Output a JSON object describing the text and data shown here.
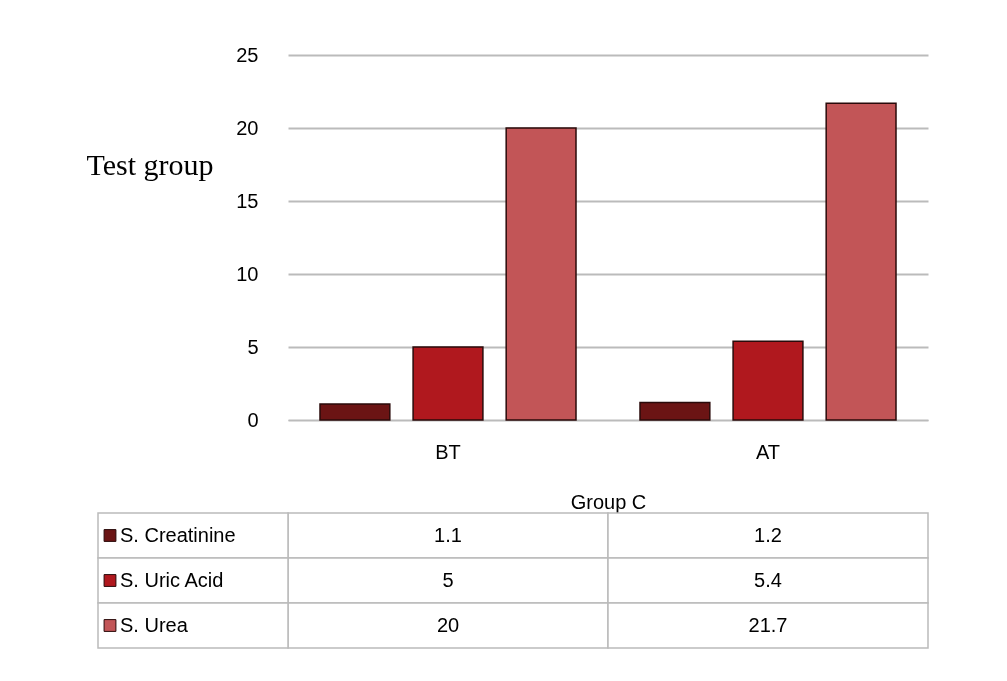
{
  "chart_data": {
    "type": "bar",
    "ylabel": "Test group",
    "xlabel": "Group C",
    "categories": [
      "BT",
      "AT"
    ],
    "series": [
      {
        "name": "S. Creatinine",
        "color": "#6b1414",
        "values": [
          1.1,
          1.2
        ]
      },
      {
        "name": "S. Uric Acid",
        "color": "#b0181e",
        "values": [
          5,
          5.4
        ]
      },
      {
        "name": "S. Urea",
        "color": "#c25557",
        "values": [
          20,
          21.7
        ]
      }
    ],
    "ylim": [
      0,
      25
    ],
    "yticks": [
      0,
      5,
      10,
      15,
      20,
      25
    ],
    "grid": "y",
    "legend": "bottom left",
    "data_labels": true
  }
}
